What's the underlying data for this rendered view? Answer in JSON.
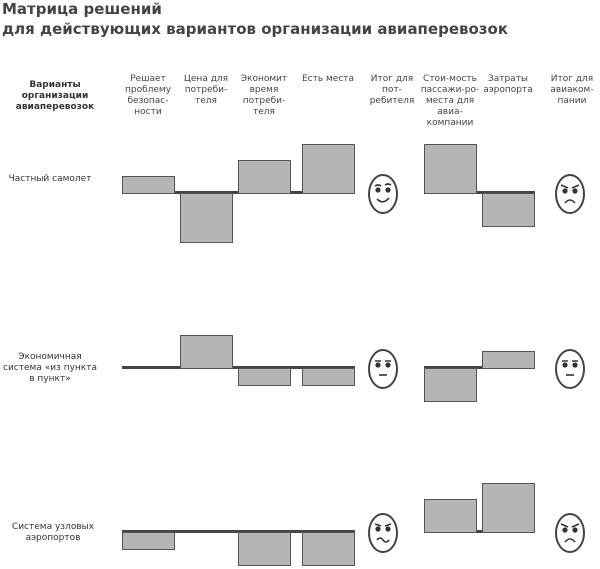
{
  "title_line1": "Матрица решений",
  "title_line2": "для действующих вариантов организации авиаперевозок",
  "row_header": "Варианты организации авиаперевозок",
  "columns": [
    "Решает проблему безопас-ности",
    "Цена для потреби-теля",
    "Экономит время потреби-теля",
    "Есть места",
    "Итог для пот-ребителя",
    "Стои-мость пассажи-ро-места для авиа-компании",
    "Затраты аэропорта",
    "Итог для авиаком-пании"
  ],
  "rows": [
    {
      "label": "Частный самолет",
      "consumer_bars": [
        1,
        -3,
        2,
        3
      ],
      "consumer_face": "happy",
      "airline_bars": [
        3,
        -2
      ],
      "airline_face": "angry"
    },
    {
      "label": "Экономичная система «из пункта в пункт»",
      "consumer_bars": [
        0,
        2,
        -1,
        -1
      ],
      "consumer_face": "neutral",
      "airline_bars": [
        -2,
        1
      ],
      "airline_face": "neutral"
    },
    {
      "label": "Система узловых аэропортов",
      "consumer_bars": [
        -1,
        0,
        -2,
        -2
      ],
      "consumer_face": "worried",
      "airline_bars": [
        2,
        3
      ],
      "airline_face": "angry"
    }
  ],
  "colors": {
    "bar_fill": "#b5b5b5",
    "bar_border": "#555555",
    "baseline": "#444444"
  }
}
